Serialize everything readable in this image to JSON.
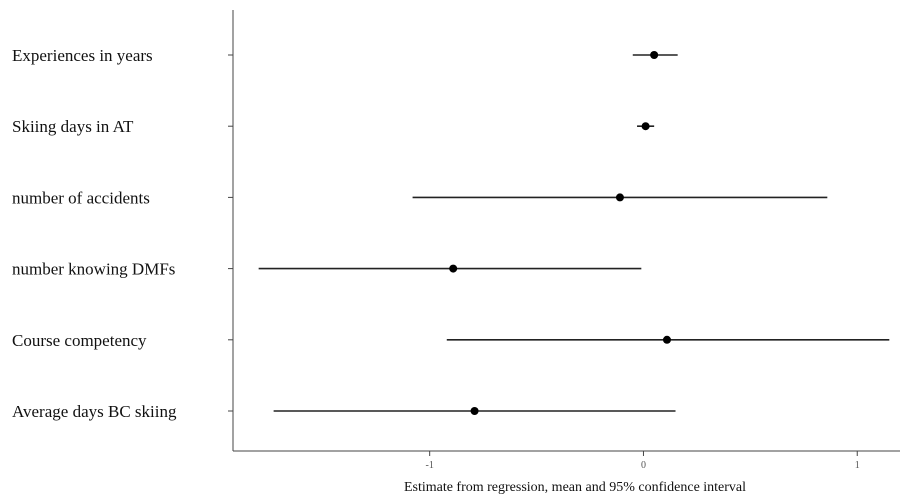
{
  "chart_data": {
    "type": "forest",
    "title": "",
    "xlabel": "Estimate from regression, mean and 95% confidence interval",
    "ylabel": "",
    "xlim": [
      -1.92,
      1.2
    ],
    "x_ticks": [
      -1,
      0,
      1
    ],
    "x_tick_labels": [
      "-1",
      "0",
      "1"
    ],
    "grid": false,
    "legend": "none",
    "categories": [
      "Experiences in years",
      "Skiing days in AT",
      "number of accidents",
      "number knowing DMFs",
      "Course competency",
      "Average days BC skiing"
    ],
    "estimates": [
      0.05,
      0.01,
      -0.11,
      -0.89,
      0.11,
      -0.79
    ],
    "lower": [
      -0.05,
      -0.03,
      -1.08,
      -1.8,
      -0.92,
      -1.73
    ],
    "upper": [
      0.16,
      0.05,
      0.86,
      -0.01,
      1.15,
      0.15
    ],
    "colors": {
      "line": "#222222",
      "point": "#000000",
      "axis": "#444444"
    }
  }
}
